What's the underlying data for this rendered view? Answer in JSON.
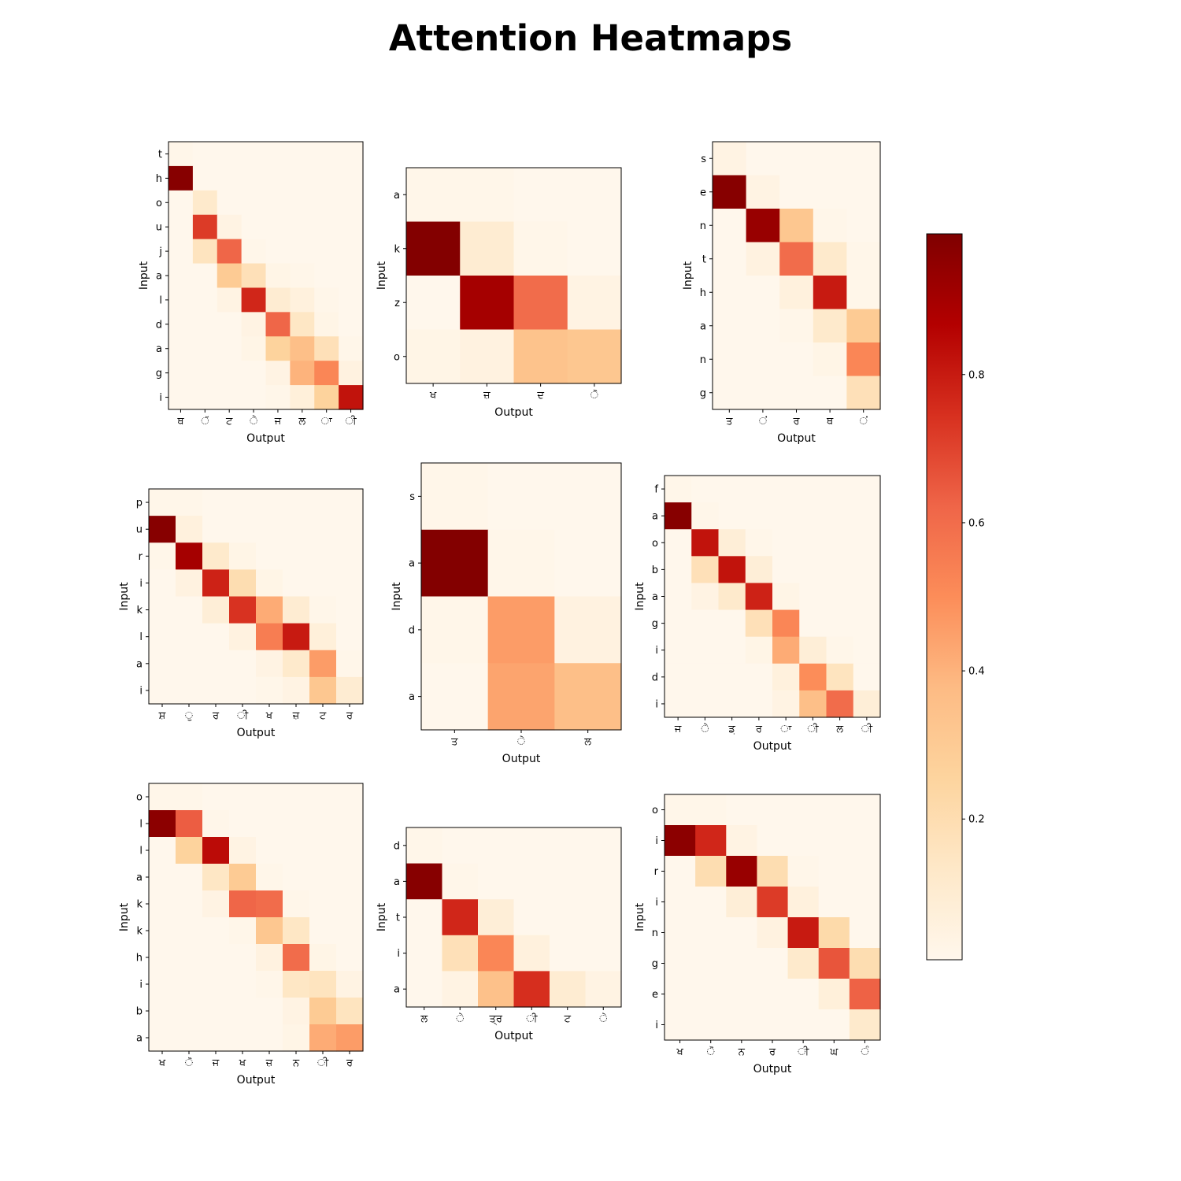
{
  "title": "Attention Heatmaps",
  "colorscale": {
    "name": "OrRd",
    "stops": [
      "#fff7ec",
      "#fee8c8",
      "#fdd49e",
      "#fdbb84",
      "#fc8d59",
      "#ef6548",
      "#d7301f",
      "#b30000",
      "#7f0000"
    ],
    "range": [
      0.01,
      0.99
    ],
    "ticks": [
      "0.2",
      "0.4",
      "0.6",
      "0.8"
    ]
  },
  "chart_data": [
    {
      "type": "heatmap",
      "xlabel": "Output",
      "ylabel": "Input",
      "y_labels": [
        "t",
        "h",
        "o",
        "u",
        "j",
        "a",
        "l",
        "d",
        "a",
        "g",
        "i"
      ],
      "x_labels": [
        "ਥ",
        "ੱ",
        "ਟ",
        "ੇ",
        "ਜ",
        "ਲ",
        "ਾ",
        "ੀ"
      ],
      "values": [
        [
          0.02,
          0.01,
          0.01,
          0.01,
          0.01,
          0.01,
          0.01,
          0.01
        ],
        [
          0.97,
          0.01,
          0.01,
          0.01,
          0.01,
          0.01,
          0.01,
          0.01
        ],
        [
          0.01,
          0.12,
          0.01,
          0.01,
          0.01,
          0.01,
          0.01,
          0.01
        ],
        [
          0.01,
          0.72,
          0.04,
          0.01,
          0.01,
          0.01,
          0.01,
          0.01
        ],
        [
          0.01,
          0.16,
          0.62,
          0.02,
          0.01,
          0.01,
          0.01,
          0.01
        ],
        [
          0.01,
          0.01,
          0.3,
          0.18,
          0.03,
          0.02,
          0.01,
          0.01
        ],
        [
          0.01,
          0.01,
          0.04,
          0.77,
          0.1,
          0.06,
          0.02,
          0.01
        ],
        [
          0.01,
          0.01,
          0.01,
          0.04,
          0.62,
          0.14,
          0.03,
          0.01
        ],
        [
          0.01,
          0.01,
          0.01,
          0.03,
          0.26,
          0.36,
          0.18,
          0.02
        ],
        [
          0.01,
          0.01,
          0.01,
          0.01,
          0.04,
          0.4,
          0.52,
          0.05
        ],
        [
          0.01,
          0.01,
          0.01,
          0.01,
          0.02,
          0.07,
          0.26,
          0.82
        ]
      ]
    },
    {
      "type": "heatmap",
      "xlabel": "Output",
      "ylabel": "Input",
      "y_labels": [
        "a",
        "k",
        "z",
        "o"
      ],
      "x_labels": [
        "ਖ",
        "ਜ਼",
        "ਦ",
        "ੋ"
      ],
      "values": [
        [
          0.02,
          0.02,
          0.01,
          0.01
        ],
        [
          0.98,
          0.1,
          0.02,
          0.01
        ],
        [
          0.01,
          0.9,
          0.6,
          0.04
        ],
        [
          0.03,
          0.05,
          0.34,
          0.32
        ]
      ]
    },
    {
      "type": "heatmap",
      "xlabel": "Output",
      "ylabel": "Input",
      "y_labels": [
        "s",
        "e",
        "n",
        "t",
        "h",
        "a",
        "n",
        "g"
      ],
      "x_labels": [
        "ਤ",
        "ਂ",
        "ਰ",
        "ਥ",
        "ਂ"
      ],
      "values": [
        [
          0.04,
          0.01,
          0.01,
          0.01,
          0.01
        ],
        [
          0.97,
          0.04,
          0.01,
          0.01,
          0.01
        ],
        [
          0.01,
          0.93,
          0.32,
          0.02,
          0.01
        ],
        [
          0.01,
          0.05,
          0.6,
          0.12,
          0.02
        ],
        [
          0.01,
          0.01,
          0.06,
          0.8,
          0.02
        ],
        [
          0.01,
          0.01,
          0.02,
          0.12,
          0.3
        ],
        [
          0.01,
          0.01,
          0.01,
          0.03,
          0.52
        ],
        [
          0.01,
          0.01,
          0.01,
          0.01,
          0.18
        ]
      ]
    },
    {
      "type": "heatmap",
      "xlabel": "Output",
      "ylabel": "Input",
      "y_labels": [
        "p",
        "u",
        "r",
        "i",
        "k",
        "l",
        "a",
        "i"
      ],
      "x_labels": [
        "ਸ਼",
        "ੁ",
        "ਰ",
        "ੀ",
        "ਖ",
        "ਜ਼",
        "ਟ",
        "ਰ"
      ],
      "values": [
        [
          0.02,
          0.02,
          0.01,
          0.01,
          0.01,
          0.01,
          0.01,
          0.01
        ],
        [
          0.97,
          0.06,
          0.01,
          0.01,
          0.01,
          0.01,
          0.01,
          0.01
        ],
        [
          0.02,
          0.9,
          0.12,
          0.03,
          0.01,
          0.01,
          0.01,
          0.01
        ],
        [
          0.01,
          0.05,
          0.78,
          0.2,
          0.03,
          0.01,
          0.01,
          0.01
        ],
        [
          0.01,
          0.01,
          0.08,
          0.74,
          0.42,
          0.1,
          0.02,
          0.01
        ],
        [
          0.01,
          0.01,
          0.01,
          0.05,
          0.55,
          0.8,
          0.07,
          0.01
        ],
        [
          0.01,
          0.01,
          0.01,
          0.01,
          0.04,
          0.12,
          0.46,
          0.02
        ],
        [
          0.01,
          0.01,
          0.01,
          0.01,
          0.02,
          0.04,
          0.32,
          0.1
        ]
      ]
    },
    {
      "type": "heatmap",
      "xlabel": "Output",
      "ylabel": "Input",
      "y_labels": [
        "s",
        "a",
        "d",
        "a"
      ],
      "x_labels": [
        "ਤ",
        "ੇ",
        "ਲ"
      ],
      "values": [
        [
          0.02,
          0.01,
          0.01
        ],
        [
          0.98,
          0.02,
          0.01
        ],
        [
          0.02,
          0.46,
          0.05
        ],
        [
          0.01,
          0.44,
          0.36
        ]
      ]
    },
    {
      "type": "heatmap",
      "xlabel": "Output",
      "ylabel": "Input",
      "y_labels": [
        "f",
        "a",
        "o",
        "b",
        "a",
        "g",
        "i",
        "d",
        "i"
      ],
      "x_labels": [
        "ਜ",
        "ੇ",
        "ਡ਼",
        "ਰ",
        "ਾ",
        "ੀ",
        "ਲ",
        "ੀ"
      ],
      "values": [
        [
          0.02,
          0.01,
          0.01,
          0.01,
          0.01,
          0.01,
          0.01,
          0.01
        ],
        [
          0.97,
          0.02,
          0.01,
          0.01,
          0.01,
          0.01,
          0.01,
          0.01
        ],
        [
          0.01,
          0.82,
          0.08,
          0.02,
          0.01,
          0.01,
          0.01,
          0.01
        ],
        [
          0.01,
          0.18,
          0.82,
          0.08,
          0.01,
          0.01,
          0.01,
          0.01
        ],
        [
          0.01,
          0.04,
          0.12,
          0.78,
          0.03,
          0.01,
          0.01,
          0.01
        ],
        [
          0.01,
          0.01,
          0.01,
          0.18,
          0.52,
          0.01,
          0.01,
          0.01
        ],
        [
          0.01,
          0.01,
          0.01,
          0.03,
          0.42,
          0.08,
          0.02,
          0.01
        ],
        [
          0.01,
          0.01,
          0.01,
          0.01,
          0.06,
          0.5,
          0.16,
          0.01
        ],
        [
          0.01,
          0.01,
          0.01,
          0.01,
          0.04,
          0.36,
          0.6,
          0.08
        ]
      ]
    },
    {
      "type": "heatmap",
      "xlabel": "Output",
      "ylabel": "Input",
      "y_labels": [
        "o",
        "l",
        "l",
        "a",
        "k",
        "k",
        "h",
        "i",
        "b",
        "a"
      ],
      "x_labels": [
        "ਖ",
        "ੋ",
        "ਜ",
        "ਖ",
        "ਜ਼",
        "ਨ",
        "ੀ",
        "ਰ"
      ],
      "values": [
        [
          0.02,
          0.02,
          0.01,
          0.01,
          0.01,
          0.01,
          0.01,
          0.01
        ],
        [
          0.96,
          0.64,
          0.02,
          0.01,
          0.01,
          0.01,
          0.01,
          0.01
        ],
        [
          0.01,
          0.26,
          0.84,
          0.04,
          0.01,
          0.01,
          0.01,
          0.01
        ],
        [
          0.01,
          0.01,
          0.14,
          0.3,
          0.02,
          0.01,
          0.01,
          0.01
        ],
        [
          0.01,
          0.01,
          0.04,
          0.62,
          0.6,
          0.02,
          0.01,
          0.01
        ],
        [
          0.01,
          0.01,
          0.01,
          0.02,
          0.32,
          0.14,
          0.01,
          0.01
        ],
        [
          0.01,
          0.01,
          0.01,
          0.01,
          0.05,
          0.6,
          0.03,
          0.01
        ],
        [
          0.01,
          0.01,
          0.01,
          0.01,
          0.02,
          0.14,
          0.16,
          0.04
        ],
        [
          0.01,
          0.01,
          0.01,
          0.01,
          0.01,
          0.04,
          0.3,
          0.16
        ],
        [
          0.01,
          0.01,
          0.01,
          0.01,
          0.01,
          0.03,
          0.42,
          0.46
        ]
      ]
    },
    {
      "type": "heatmap",
      "xlabel": "Output",
      "ylabel": "Input",
      "y_labels": [
        "d",
        "a",
        "t",
        "i",
        "a"
      ],
      "x_labels": [
        "ਲ",
        "ੇ",
        "ਤ੍ਰ",
        "ੀ",
        "ਟ",
        "ੇ"
      ],
      "values": [
        [
          0.02,
          0.01,
          0.01,
          0.01,
          0.01,
          0.01
        ],
        [
          0.97,
          0.02,
          0.01,
          0.01,
          0.01,
          0.01
        ],
        [
          0.01,
          0.77,
          0.08,
          0.01,
          0.01,
          0.01
        ],
        [
          0.01,
          0.18,
          0.52,
          0.06,
          0.01,
          0.01
        ],
        [
          0.01,
          0.04,
          0.35,
          0.75,
          0.1,
          0.04
        ]
      ]
    },
    {
      "type": "heatmap",
      "xlabel": "Output",
      "ylabel": "Input",
      "y_labels": [
        "o",
        "i",
        "r",
        "i",
        "n",
        "g",
        "e",
        "i"
      ],
      "x_labels": [
        "ਖ",
        "ੋ",
        "ਨ",
        "ਰ",
        "ੀ",
        "ਘ",
        "ੰ"
      ],
      "values": [
        [
          0.02,
          0.02,
          0.01,
          0.01,
          0.01,
          0.01,
          0.01
        ],
        [
          0.96,
          0.77,
          0.04,
          0.01,
          0.01,
          0.01,
          0.01
        ],
        [
          0.01,
          0.2,
          0.93,
          0.2,
          0.02,
          0.01,
          0.01
        ],
        [
          0.01,
          0.01,
          0.08,
          0.72,
          0.06,
          0.01,
          0.01
        ],
        [
          0.01,
          0.01,
          0.01,
          0.05,
          0.8,
          0.22,
          0.01
        ],
        [
          0.01,
          0.01,
          0.01,
          0.01,
          0.12,
          0.66,
          0.2
        ],
        [
          0.01,
          0.01,
          0.01,
          0.01,
          0.01,
          0.07,
          0.63
        ],
        [
          0.01,
          0.01,
          0.01,
          0.01,
          0.01,
          0.01,
          0.12
        ]
      ]
    }
  ]
}
